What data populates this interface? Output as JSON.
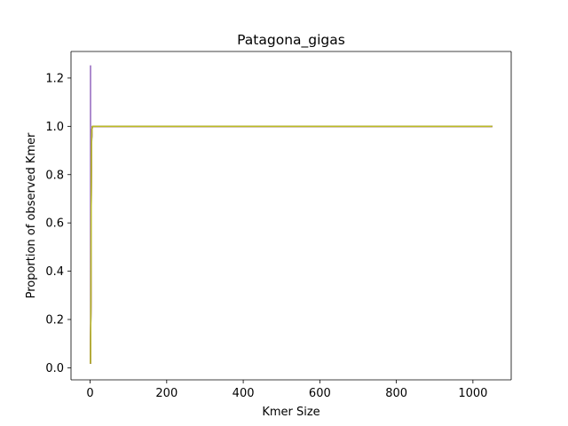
{
  "chart_data": {
    "type": "line",
    "title": "Patagona_gigas",
    "xlabel": "Kmer Size",
    "ylabel": "Proportion of observed Kmer",
    "xlim": [
      -50,
      1100
    ],
    "ylim": [
      -0.05,
      1.31
    ],
    "xticks": [
      0,
      200,
      400,
      600,
      800,
      1000
    ],
    "yticks": [
      0.0,
      0.2,
      0.4,
      0.6,
      0.8,
      1.0,
      1.2
    ],
    "xtick_labels": [
      "0",
      "200",
      "400",
      "600",
      "800",
      "1000"
    ],
    "ytick_labels": [
      "0.0",
      "0.2",
      "0.4",
      "0.6",
      "0.8",
      "1.0",
      "1.2"
    ],
    "grid": false,
    "legend": "none",
    "series": [
      {
        "color": "#1f77b4",
        "x": [
          1,
          2,
          3,
          4,
          5,
          6,
          8,
          10,
          15,
          20,
          50,
          1049
        ],
        "y": [
          0.02,
          0.3,
          0.8,
          0.95,
          0.99,
          1.0,
          1.0,
          1.0,
          1.0,
          1.0,
          1.0,
          1.0
        ]
      },
      {
        "color": "#ff7f0e",
        "x": [
          1,
          2,
          3,
          4,
          5,
          6,
          8,
          10,
          15,
          20,
          50,
          1049
        ],
        "y": [
          0.02,
          0.32,
          0.82,
          0.96,
          0.99,
          1.0,
          1.0,
          1.0,
          1.0,
          1.0,
          1.0,
          1.0
        ]
      },
      {
        "color": "#2ca02c",
        "x": [
          1,
          2,
          3,
          4,
          5,
          6,
          8,
          10,
          15,
          20,
          50,
          1049
        ],
        "y": [
          0.02,
          0.28,
          0.78,
          0.95,
          0.99,
          1.0,
          1.0,
          1.0,
          1.0,
          1.0,
          1.0,
          1.0
        ]
      },
      {
        "color": "#d62728",
        "x": [
          1,
          2,
          3,
          4,
          5,
          6,
          8,
          10,
          15,
          20,
          50,
          1049
        ],
        "y": [
          0.02,
          0.3,
          0.8,
          0.96,
          0.99,
          1.0,
          1.0,
          1.0,
          1.0,
          1.0,
          1.0,
          1.0
        ]
      },
      {
        "color": "#9467bd",
        "x": [
          1,
          1,
          2,
          3,
          4,
          5,
          6,
          8,
          10,
          15,
          20,
          50,
          1049
        ],
        "y": [
          1.25,
          0.02,
          0.3,
          0.8,
          0.95,
          0.99,
          1.0,
          1.0,
          1.0,
          1.0,
          1.0,
          1.0,
          1.0
        ]
      },
      {
        "color": "#8c564b",
        "x": [
          1,
          2,
          3,
          4,
          5,
          6,
          8,
          10,
          15,
          20,
          50,
          1049
        ],
        "y": [
          0.02,
          0.3,
          0.8,
          0.95,
          0.99,
          1.0,
          1.0,
          1.0,
          1.0,
          1.0,
          1.0,
          1.0
        ]
      },
      {
        "color": "#e377c2",
        "x": [
          1,
          2,
          3,
          4,
          5,
          6,
          8,
          10,
          15,
          20,
          50,
          1049
        ],
        "y": [
          0.02,
          0.3,
          0.8,
          0.95,
          0.99,
          1.0,
          1.0,
          1.0,
          1.0,
          1.0,
          1.0,
          1.0
        ]
      },
      {
        "color": "#7f7f7f",
        "x": [
          1,
          2,
          3,
          4,
          5,
          6,
          8,
          10,
          15,
          20,
          50,
          1049
        ],
        "y": [
          0.02,
          0.3,
          0.8,
          0.95,
          0.99,
          1.0,
          1.0,
          1.0,
          1.0,
          1.0,
          1.0,
          1.0
        ]
      },
      {
        "color": "#bcbd22",
        "x": [
          1,
          2,
          3,
          4,
          5,
          6,
          8,
          10,
          15,
          20,
          50,
          1049
        ],
        "y": [
          0.02,
          0.3,
          0.82,
          0.96,
          0.99,
          1.0,
          1.0,
          1.0,
          1.0,
          1.0,
          1.0,
          1.0
        ]
      }
    ]
  }
}
